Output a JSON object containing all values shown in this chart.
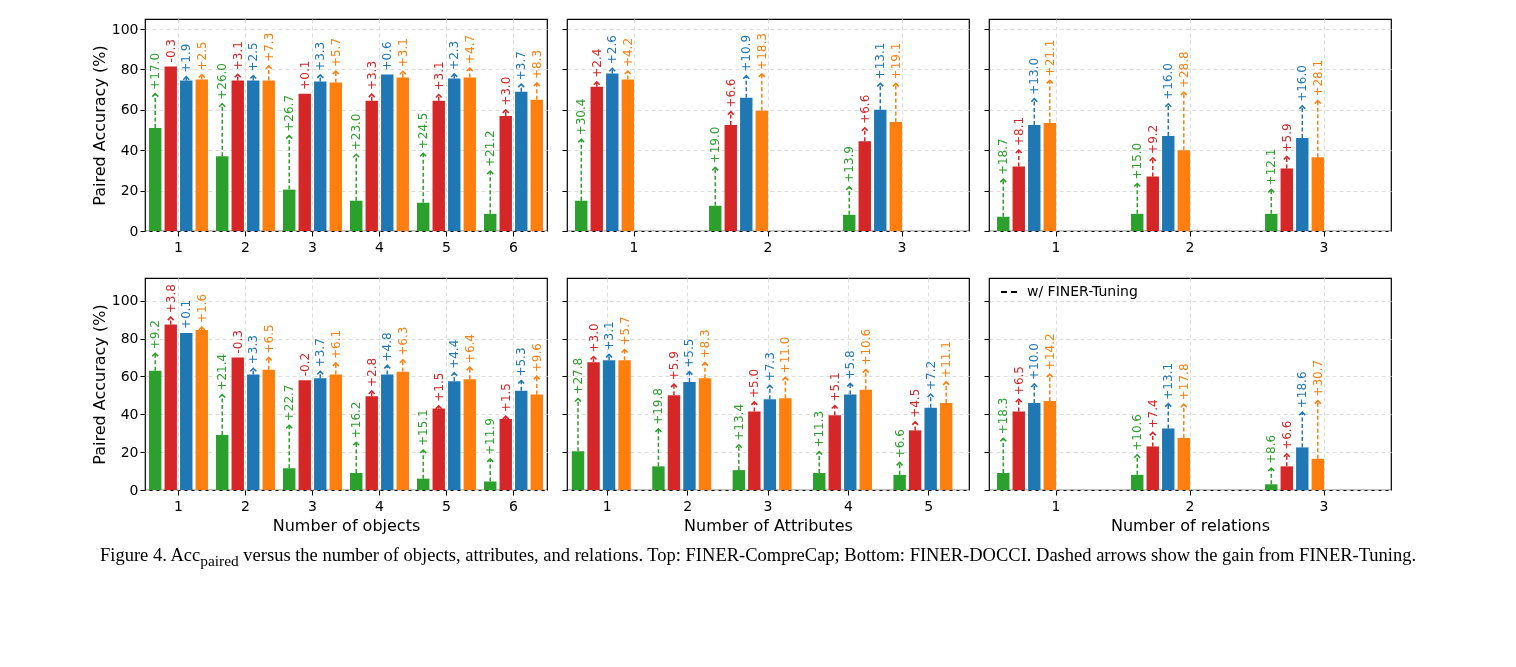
{
  "chart_data": [
    {
      "type": "bar",
      "ylabel": "Paired Accuracy (%)",
      "categories": [
        "1",
        "2",
        "3",
        "4",
        "5",
        "6"
      ],
      "ylim": [
        0,
        105
      ],
      "yticks": [
        0,
        20,
        40,
        60,
        80,
        100
      ],
      "grid": true,
      "series": [
        {
          "color": "#2ca02c",
          "values": [
            51,
            37,
            20.5,
            15,
            14,
            8.5
          ],
          "errors": [
            [
              51,
              68
            ],
            [
              37,
              63
            ],
            [
              20.5,
              47.2
            ],
            [
              15,
              38
            ],
            [
              14,
              38.5
            ],
            [
              8.5,
              29.7
            ]
          ]
        },
        {
          "color": "#d62728",
          "values": [
            81.5,
            74.5,
            68,
            64.5,
            64.5,
            57
          ],
          "errors": [
            null,
            [
              74.5,
              77.6
            ],
            null,
            [
              64.5,
              67.8
            ],
            [
              64.5,
              67.6
            ],
            [
              57,
              60
            ]
          ]
        },
        {
          "color": "#1f77b4",
          "values": [
            74.5,
            74.5,
            74,
            77.5,
            75.5,
            69
          ],
          "errors": [
            [
              74.5,
              76.4
            ],
            [
              74.5,
              77
            ],
            [
              74,
              77.3
            ],
            null,
            [
              75.5,
              77.8
            ],
            [
              69,
              72.7
            ]
          ]
        },
        {
          "color": "#ff7f0e",
          "values": [
            75,
            74.5,
            73.5,
            76,
            76,
            65
          ],
          "errors": [
            [
              75,
              77.5
            ],
            [
              74.5,
              81.8
            ],
            [
              73.5,
              79.2
            ],
            [
              76,
              79.1
            ],
            [
              76,
              80.7
            ],
            [
              65,
              73.3
            ]
          ]
        }
      ],
      "annotations": [
        "+17.0",
        "+26.0",
        "+26.7",
        "+23.0",
        "+24.5",
        "+21.2",
        "-0.3",
        "+3.1",
        "+0.1",
        "+3.3",
        "+3.1",
        "+3.0",
        "+1.9",
        "+2.5",
        "+3.3",
        "+0.6",
        "+2.3",
        "+3.7",
        "+2.5",
        "+7.3",
        "+5.7",
        "+3.1",
        "+4.7",
        "+8.3"
      ]
    },
    {
      "type": "bar",
      "categories": [
        "1",
        "2",
        "3"
      ],
      "ylim": [
        0,
        105
      ],
      "yticks": [
        0,
        20,
        40,
        60,
        80,
        100
      ],
      "grid": true,
      "tick_labels": "x",
      "series": [
        {
          "color": "#2ca02c",
          "values": [
            15,
            12.5,
            8
          ],
          "errors": [
            [
              15,
              45.4
            ],
            [
              12.5,
              31.5
            ],
            [
              8,
              21.9
            ]
          ]
        },
        {
          "color": "#d62728",
          "values": [
            71.5,
            52.5,
            44.5
          ],
          "errors": [
            [
              71.5,
              73.9
            ],
            [
              52.5,
              59.1
            ],
            [
              44.5,
              51.1
            ]
          ]
        },
        {
          "color": "#1f77b4",
          "values": [
            78,
            66,
            60
          ],
          "errors": [
            [
              78,
              80.6
            ],
            [
              66,
              76.9
            ],
            [
              60,
              73.1
            ]
          ]
        },
        {
          "color": "#ff7f0e",
          "values": [
            75,
            59.5,
            54
          ],
          "errors": [
            [
              75,
              79.2
            ],
            [
              59.5,
              77.8
            ],
            [
              54,
              73.1
            ]
          ]
        }
      ],
      "annotations": [
        "+30.4",
        "+19.0",
        "+13.9",
        "+2.4",
        "+6.6",
        "+6.6",
        "+2.6",
        "+10.9",
        "+13.1",
        "+4.2",
        "+18.3",
        "+19.1"
      ]
    },
    {
      "type": "bar",
      "categories": [
        "1",
        "2",
        "3"
      ],
      "ylim": [
        0,
        105
      ],
      "yticks": [
        0,
        20,
        40,
        60,
        80,
        100
      ],
      "grid": true,
      "tick_labels": "x",
      "series": [
        {
          "color": "#2ca02c",
          "values": [
            7,
            8.5,
            8.5
          ],
          "errors": [
            [
              7,
              25.7
            ],
            [
              8.5,
              23.5
            ],
            [
              8.5,
              20.6
            ]
          ]
        },
        {
          "color": "#d62728",
          "values": [
            32,
            27,
            31
          ],
          "errors": [
            [
              32,
              40.1
            ],
            [
              27,
              36.2
            ],
            [
              31,
              36.9
            ]
          ]
        },
        {
          "color": "#1f77b4",
          "values": [
            52.5,
            47,
            46
          ],
          "errors": [
            [
              52.5,
              65.5
            ],
            [
              47,
              63
            ],
            [
              46,
              62
            ]
          ]
        },
        {
          "color": "#ff7f0e",
          "values": [
            53.5,
            40,
            36.5
          ],
          "errors": [
            [
              53.5,
              74.6
            ],
            [
              40,
              68.8
            ],
            [
              36.5,
              64.6
            ]
          ]
        }
      ],
      "annotations": [
        "+18.7",
        "+15.0",
        "+12.1",
        "+8.1",
        "+9.2",
        "+5.9",
        "+13.0",
        "+16.0",
        "+16.0",
        "+21.1",
        "+28.8",
        "+28.1"
      ]
    },
    {
      "type": "bar",
      "xlabel": "Number of objects",
      "ylabel": "Paired Accuracy (%)",
      "categories": [
        "1",
        "2",
        "3",
        "4",
        "5",
        "6"
      ],
      "ylim": [
        0,
        112
      ],
      "yticks": [
        0,
        20,
        40,
        60,
        80,
        100
      ],
      "grid": true,
      "series": [
        {
          "color": "#2ca02c",
          "values": [
            63,
            29,
            11.5,
            9,
            6,
            4.5
          ],
          "errors": [
            [
              63,
              72.2
            ],
            [
              29,
              50.4
            ],
            [
              11.5,
              34.2
            ],
            [
              9,
              25.2
            ],
            [
              6,
              21.1
            ],
            [
              4.5,
              16.4
            ]
          ]
        },
        {
          "color": "#d62728",
          "values": [
            87.5,
            70,
            58,
            49.5,
            43,
            37.5
          ],
          "errors": [
            [
              87.5,
              91.3
            ],
            null,
            null,
            [
              49.5,
              52.3
            ],
            [
              43,
              44.5
            ],
            [
              37.5,
              39
            ]
          ]
        },
        {
          "color": "#1f77b4",
          "values": [
            83,
            61,
            59,
            61,
            57.5,
            52.5
          ],
          "errors": [
            null,
            [
              61,
              64.3
            ],
            [
              59,
              62.7
            ],
            [
              61,
              65.8
            ],
            [
              57.5,
              61.9
            ],
            [
              52.5,
              57.8
            ]
          ]
        },
        {
          "color": "#ff7f0e",
          "values": [
            84.5,
            63.5,
            61,
            62.5,
            58.5,
            50.5
          ],
          "errors": [
            [
              84.5,
              86.1
            ],
            [
              63.5,
              70
            ],
            [
              61,
              67.1
            ],
            [
              62.5,
              68.8
            ],
            [
              58.5,
              64.9
            ],
            [
              50.5,
              60.1
            ]
          ]
        }
      ],
      "annotations": [
        "+9.2",
        "+21.4",
        "+22.7",
        "+16.2",
        "+15.1",
        "+11.9",
        "+3.8",
        "-0.3",
        "-0.2",
        "+2.8",
        "+1.5",
        "+1.5",
        "+0.1",
        "+3.3",
        "+3.7",
        "+4.8",
        "+4.4",
        "+5.3",
        "+1.6",
        "+6.5",
        "+6.1",
        "+6.3",
        "+6.4",
        "+9.6"
      ]
    },
    {
      "type": "bar",
      "xlabel": "Number of Attributes",
      "categories": [
        "1",
        "2",
        "3",
        "4",
        "5"
      ],
      "ylim": [
        0,
        112
      ],
      "yticks": [
        0,
        20,
        40,
        60,
        80,
        100
      ],
      "grid": true,
      "tick_labels": "x",
      "series": [
        {
          "color": "#2ca02c",
          "values": [
            20.5,
            12.5,
            10.5,
            9,
            8
          ],
          "errors": [
            [
              20.5,
              48.3
            ],
            [
              12.5,
              32.3
            ],
            [
              10.5,
              23.9
            ],
            [
              9,
              20.3
            ],
            [
              8,
              14.6
            ]
          ]
        },
        {
          "color": "#d62728",
          "values": [
            67.5,
            50,
            41.5,
            39.5,
            31.5
          ],
          "errors": [
            [
              67.5,
              70.5
            ],
            [
              50,
              55.9
            ],
            [
              41.5,
              46.5
            ],
            [
              39.5,
              44.6
            ],
            [
              31.5,
              36
            ]
          ]
        },
        {
          "color": "#1f77b4",
          "values": [
            68.5,
            57,
            48,
            50.5,
            43.5
          ],
          "errors": [
            [
              68.5,
              71.6
            ],
            [
              57,
              62.5
            ],
            [
              48,
              55.3
            ],
            [
              50.5,
              56.3
            ],
            [
              43.5,
              50.7
            ]
          ]
        },
        {
          "color": "#ff7f0e",
          "values": [
            68.5,
            59,
            48.5,
            53,
            46
          ],
          "errors": [
            [
              68.5,
              74.2
            ],
            [
              59,
              67.3
            ],
            [
              48.5,
              59.5
            ],
            [
              53,
              63.6
            ],
            [
              46,
              57.1
            ]
          ]
        }
      ],
      "annotations": [
        "+27.8",
        "+19.8",
        "+13.4",
        "+11.3",
        "+6.6",
        "+3.0",
        "+5.9",
        "+5.0",
        "+5.1",
        "+4.5",
        "+3.1",
        "+5.5",
        "+7.3",
        "+5.8",
        "+7.2",
        "+5.7",
        "+8.3",
        "+11.0",
        "+10.6",
        "+11.1"
      ]
    },
    {
      "type": "bar",
      "xlabel": "Number of relations",
      "categories": [
        "1",
        "2",
        "3"
      ],
      "ylim": [
        0,
        112
      ],
      "yticks": [
        0,
        20,
        40,
        60,
        80,
        100
      ],
      "grid": true,
      "tick_labels": "x",
      "series": [
        {
          "color": "#2ca02c",
          "values": [
            9,
            8,
            3
          ],
          "errors": [
            [
              9,
              27.3
            ],
            [
              8,
              18.6
            ],
            [
              3,
              11.6
            ]
          ]
        },
        {
          "color": "#d62728",
          "values": [
            41.5,
            23,
            12.5
          ],
          "errors": [
            [
              41.5,
              48
            ],
            [
              23,
              30.4
            ],
            [
              12.5,
              19.1
            ]
          ]
        },
        {
          "color": "#1f77b4",
          "values": [
            46,
            32.5,
            22.5
          ],
          "errors": [
            [
              46,
              56
            ],
            [
              32.5,
              45.6
            ],
            [
              22.5,
              41.1
            ]
          ]
        },
        {
          "color": "#ff7f0e",
          "values": [
            47,
            27.5,
            16.5
          ],
          "errors": [
            [
              47,
              61.2
            ],
            [
              27.5,
              45.3
            ],
            [
              16.5,
              47.2
            ]
          ]
        }
      ],
      "annotations": [
        "w/ FINER-Tuning",
        "Figure 4. Acc$_{paired}$ versus the number of objects, attributes, and relations. Top: FINER-CompreCap; Bottom: FINER-DOCCI. Dashed arrows show the gain from FINER-Tuning.",
        "+18.3",
        "+10.6",
        "+8.6",
        "+6.5",
        "+7.4",
        "+6.6",
        "+10.0",
        "+13.1",
        "+18.6",
        "+14.2",
        "+17.8",
        "+30.7"
      ]
    }
  ]
}
